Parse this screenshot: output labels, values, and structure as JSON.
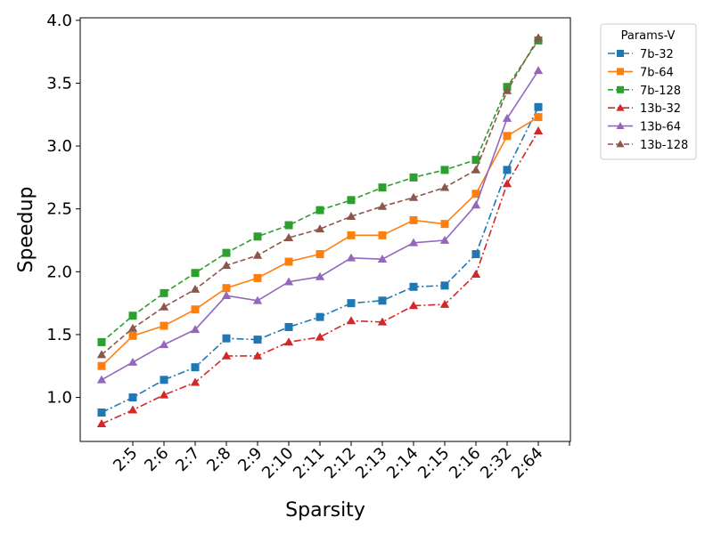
{
  "chart_data": {
    "type": "line",
    "xlabel": "Sparsity",
    "ylabel": "Speedup",
    "categories": [
      "",
      "2:5",
      "2:6",
      "2:7",
      "2:8",
      "2:9",
      "2:10",
      "2:11",
      "2:12",
      "2:13",
      "2:14",
      "2:15",
      "2:16",
      "2:32",
      "2:64"
    ],
    "x_tick_labels": [
      "2:5",
      "2:6",
      "2:7",
      "2:8",
      "2:9",
      "2:10",
      "2:11",
      "2:12",
      "2:13",
      "2:14",
      "2:15",
      "2:16",
      "2:32",
      "2:64"
    ],
    "yticks": [
      1.0,
      1.5,
      2.0,
      2.5,
      3.0,
      3.5,
      4.0
    ],
    "ytick_labels": [
      "1.0",
      "1.5",
      "2.0",
      "2.5",
      "3.0",
      "3.5",
      "4.0"
    ],
    "ylim": [
      0.65,
      4.02
    ],
    "grid": false,
    "legend": {
      "title": "Params-V",
      "placement": "outside-top-right"
    },
    "series": [
      {
        "name": "7b-32",
        "color": "#1f77b4",
        "linestyle": "dashdot",
        "marker": "square",
        "values": [
          0.88,
          1.0,
          1.14,
          1.24,
          1.47,
          1.46,
          1.56,
          1.64,
          1.75,
          1.77,
          1.88,
          1.89,
          2.14,
          2.81,
          3.31
        ]
      },
      {
        "name": "7b-64",
        "color": "#ff7f0e",
        "linestyle": "solid",
        "marker": "square",
        "values": [
          1.25,
          1.49,
          1.57,
          1.7,
          1.87,
          1.95,
          2.08,
          2.14,
          2.29,
          2.29,
          2.41,
          2.38,
          2.62,
          3.08,
          3.23
        ]
      },
      {
        "name": "7b-128",
        "color": "#2ca02c",
        "linestyle": "dashed",
        "marker": "square",
        "values": [
          1.44,
          1.65,
          1.83,
          1.99,
          2.15,
          2.28,
          2.37,
          2.49,
          2.57,
          2.67,
          2.75,
          2.81,
          2.89,
          3.47,
          3.84
        ]
      },
      {
        "name": "13b-32",
        "color": "#d62728",
        "linestyle": "dashdot",
        "marker": "triangle",
        "values": [
          0.79,
          0.9,
          1.02,
          1.12,
          1.33,
          1.33,
          1.44,
          1.48,
          1.61,
          1.6,
          1.73,
          1.74,
          1.98,
          2.7,
          3.12
        ]
      },
      {
        "name": "13b-64",
        "color": "#9467bd",
        "linestyle": "solid",
        "marker": "triangle",
        "values": [
          1.14,
          1.28,
          1.42,
          1.54,
          1.81,
          1.77,
          1.92,
          1.96,
          2.11,
          2.1,
          2.23,
          2.25,
          2.53,
          3.22,
          3.6
        ]
      },
      {
        "name": "13b-128",
        "color": "#8c564b",
        "linestyle": "dashed",
        "marker": "triangle",
        "values": [
          1.34,
          1.55,
          1.72,
          1.86,
          2.05,
          2.13,
          2.27,
          2.34,
          2.44,
          2.52,
          2.59,
          2.67,
          2.81,
          3.44,
          3.86
        ]
      }
    ]
  }
}
